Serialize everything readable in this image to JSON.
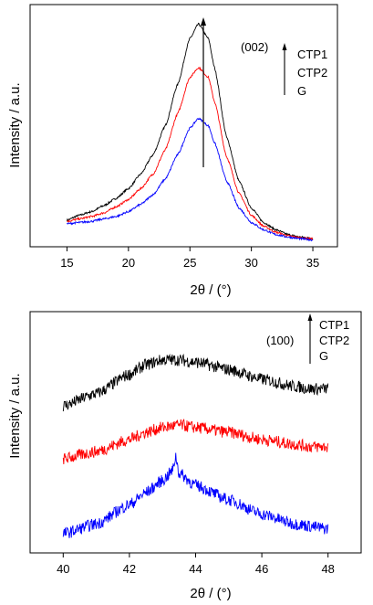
{
  "chart_data": [
    {
      "type": "line",
      "title": "",
      "xlabel": "2θ / (°)",
      "ylabel": "Intensity / a.u.",
      "xlim": [
        12,
        37
      ],
      "ylim": [
        0,
        1.0
      ],
      "xticks": [
        15,
        20,
        25,
        30,
        35
      ],
      "y_ticks_labeled": false,
      "grid": false,
      "peak_annotation": "(002)",
      "legend": [
        "CTP1",
        "CTP2",
        "G"
      ],
      "legend_placement": "top-right",
      "series": [
        {
          "name": "CTP1",
          "color": "#000000",
          "x": [
            15,
            16,
            17,
            18,
            19,
            20,
            21,
            22,
            23,
            24,
            25,
            25.7,
            26.5,
            27,
            28,
            29,
            30,
            31,
            32,
            33,
            34,
            35
          ],
          "y": [
            0.11,
            0.13,
            0.145,
            0.17,
            0.2,
            0.24,
            0.3,
            0.38,
            0.5,
            0.67,
            0.86,
            0.92,
            0.86,
            0.74,
            0.45,
            0.27,
            0.16,
            0.1,
            0.07,
            0.05,
            0.04,
            0.035
          ]
        },
        {
          "name": "CTP2",
          "color": "#ff0000",
          "x": [
            15,
            16,
            17,
            18,
            19,
            20,
            21,
            22,
            23,
            24,
            25,
            25.7,
            26.5,
            27,
            28,
            29,
            30,
            31,
            32,
            33,
            34,
            35
          ],
          "y": [
            0.105,
            0.115,
            0.125,
            0.14,
            0.165,
            0.195,
            0.24,
            0.3,
            0.4,
            0.55,
            0.7,
            0.74,
            0.7,
            0.6,
            0.37,
            0.22,
            0.13,
            0.085,
            0.06,
            0.045,
            0.037,
            0.032
          ]
        },
        {
          "name": "G",
          "color": "#0000ff",
          "x": [
            15,
            16,
            17,
            18,
            19,
            20,
            21,
            22,
            23,
            24,
            25,
            25.7,
            26.5,
            27,
            28,
            29,
            30,
            31,
            32,
            33,
            34,
            35
          ],
          "y": [
            0.095,
            0.1,
            0.105,
            0.115,
            0.125,
            0.145,
            0.175,
            0.215,
            0.28,
            0.38,
            0.49,
            0.53,
            0.5,
            0.43,
            0.27,
            0.16,
            0.1,
            0.07,
            0.05,
            0.04,
            0.033,
            0.028
          ]
        }
      ]
    },
    {
      "type": "line",
      "title": "",
      "xlabel": "2θ / (°)",
      "ylabel": "Intensity / a.u.",
      "xlim": [
        39,
        49
      ],
      "ylim": [
        0,
        1.0
      ],
      "xticks": [
        40,
        42,
        44,
        46,
        48
      ],
      "y_ticks_labeled": false,
      "grid": false,
      "peak_annotation": "(100)",
      "legend": [
        "CTP1",
        "CTP2",
        "G"
      ],
      "legend_placement": "top-right",
      "series": [
        {
          "name": "CTP1",
          "color": "#000000",
          "x": [
            40,
            41,
            42,
            42.5,
            43,
            43.5,
            44,
            45,
            46,
            47,
            47.5,
            48
          ],
          "y": [
            0.61,
            0.66,
            0.74,
            0.78,
            0.8,
            0.8,
            0.79,
            0.76,
            0.72,
            0.69,
            0.68,
            0.68
          ]
        },
        {
          "name": "CTP2",
          "color": "#ff0000",
          "x": [
            40,
            41,
            42,
            42.5,
            43,
            43.5,
            44,
            45,
            46,
            47,
            47.5,
            48
          ],
          "y": [
            0.39,
            0.42,
            0.47,
            0.5,
            0.52,
            0.53,
            0.52,
            0.5,
            0.47,
            0.45,
            0.44,
            0.44
          ]
        },
        {
          "name": "G",
          "color": "#0000ff",
          "x": [
            40,
            41,
            42,
            42.5,
            43,
            43.3,
            43.4,
            43.5,
            44,
            45,
            46,
            47,
            48
          ],
          "y": [
            0.08,
            0.12,
            0.2,
            0.25,
            0.3,
            0.34,
            0.4,
            0.33,
            0.28,
            0.22,
            0.16,
            0.12,
            0.1
          ]
        }
      ]
    }
  ]
}
